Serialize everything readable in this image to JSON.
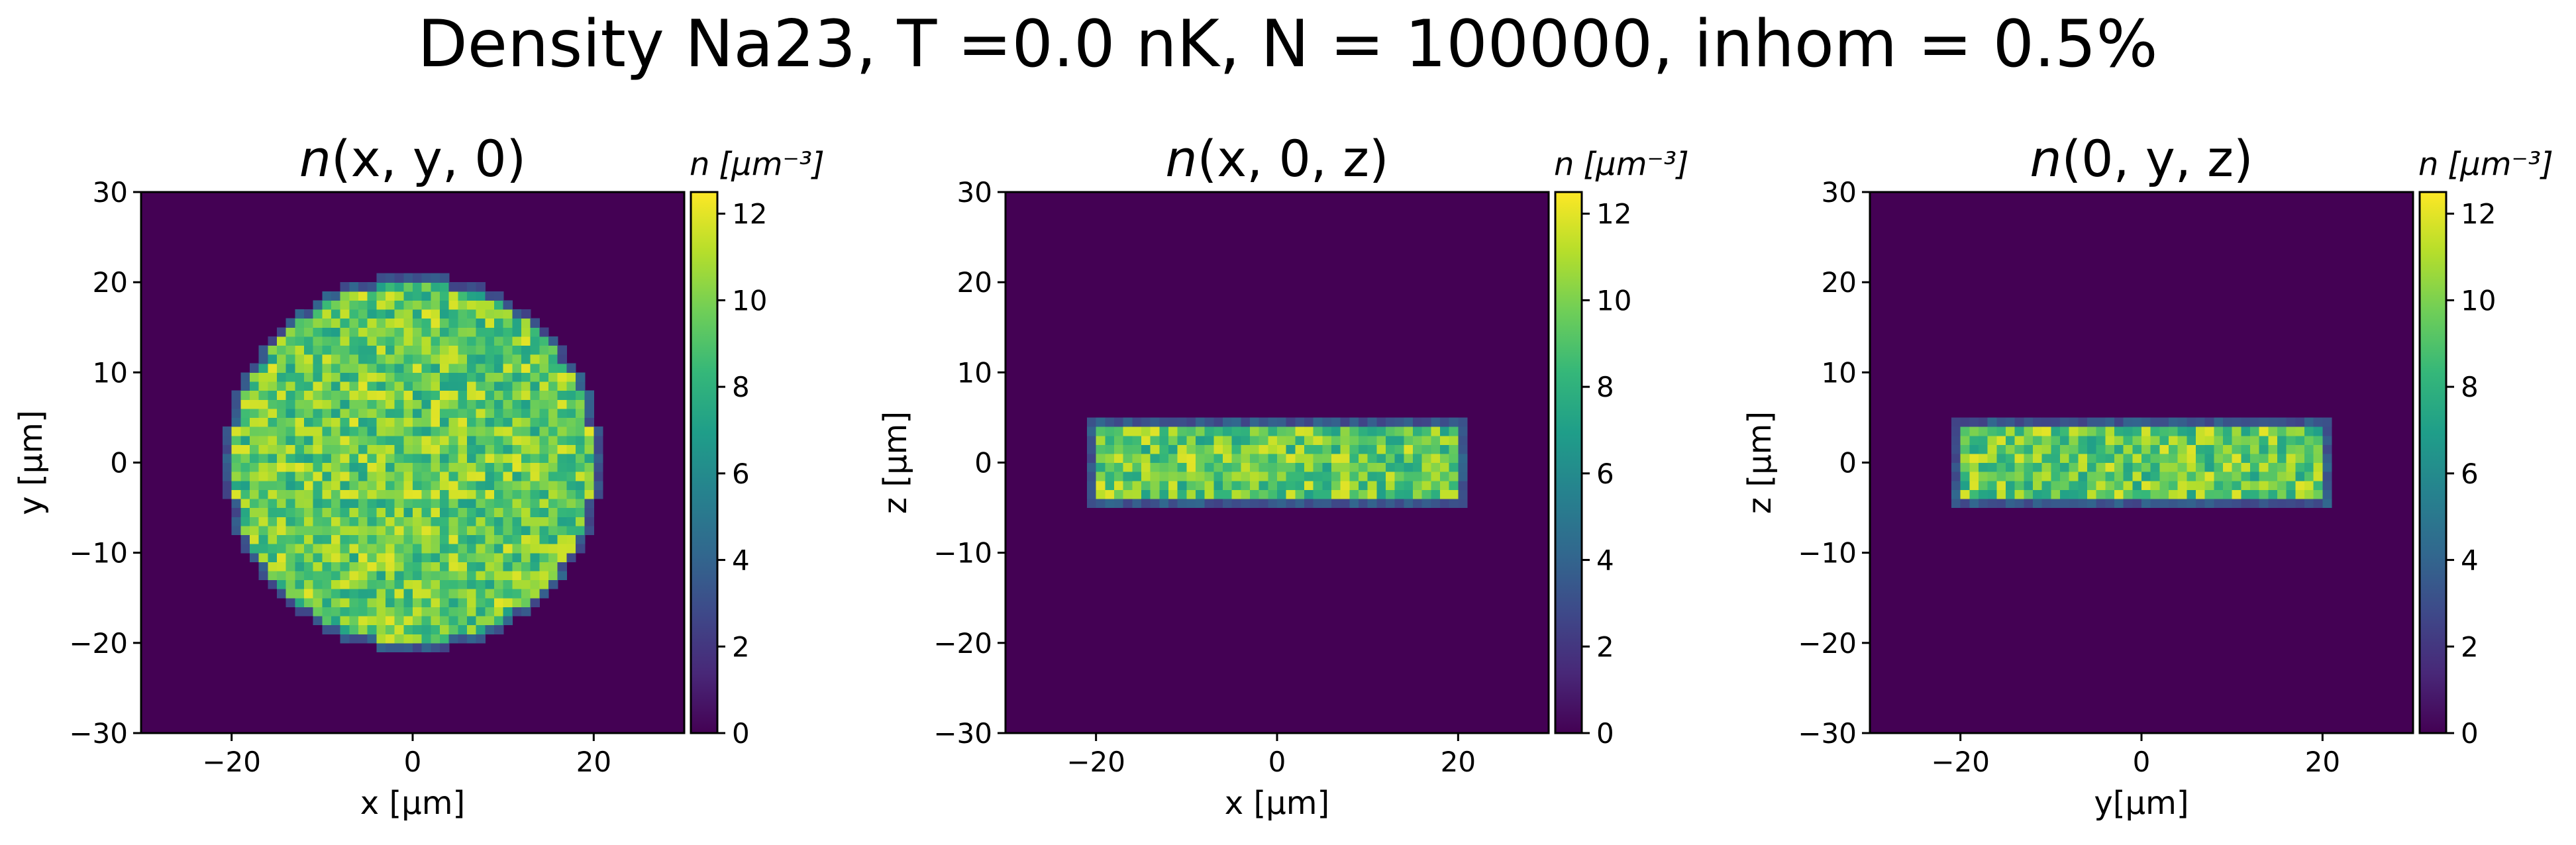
{
  "figure": {
    "title": "Density Na23, T =0.0 nK, N = 100000, inhom = 0.5%"
  },
  "colormap": {
    "name": "viridis",
    "stops": [
      "#440154",
      "#482878",
      "#3e4989",
      "#31688e",
      "#26828e",
      "#1f9e89",
      "#35b779",
      "#6ece58",
      "#b5de2b",
      "#fde725"
    ]
  },
  "chart_data": [
    {
      "type": "heatmap",
      "title_var": "n",
      "title_args": "(x, y, 0)",
      "xlabel": "x [µm]",
      "ylabel": "y [µm]",
      "xlim": [
        -30,
        30
      ],
      "ylim": [
        -30,
        30
      ],
      "xticks": [
        -20,
        0,
        20
      ],
      "yticks": [
        -30,
        -20,
        -10,
        0,
        10,
        20,
        30
      ],
      "xtick_labels": [
        "−20",
        "0",
        "20"
      ],
      "ytick_labels": [
        "−30",
        "−20",
        "−10",
        "0",
        "10",
        "20",
        "30"
      ],
      "colorbar": {
        "label_var": "n",
        "label_unit": "[µm⁻³]",
        "range": [
          0,
          12.5
        ],
        "ticks": [
          0,
          2,
          4,
          6,
          8,
          10,
          12
        ],
        "tick_labels": [
          "0",
          "2",
          "4",
          "6",
          "8",
          "10",
          "12"
        ]
      },
      "cloud": {
        "shape": "disk",
        "center": [
          0,
          0
        ],
        "radius": 20,
        "mean_density": 9.5,
        "noise": 2.5
      },
      "grid_step": 1
    },
    {
      "type": "heatmap",
      "title_var": "n",
      "title_args": "(x, 0, z)",
      "xlabel": "x [µm]",
      "ylabel": "z [µm]",
      "xlim": [
        -30,
        30
      ],
      "ylim": [
        -30,
        30
      ],
      "xticks": [
        -20,
        0,
        20
      ],
      "yticks": [
        -30,
        -20,
        -10,
        0,
        10,
        20,
        30
      ],
      "xtick_labels": [
        "−20",
        "0",
        "20"
      ],
      "ytick_labels": [
        "−30",
        "−20",
        "−10",
        "0",
        "10",
        "20",
        "30"
      ],
      "colorbar": {
        "label_var": "n",
        "label_unit": "[µm⁻³]",
        "range": [
          0,
          12.5
        ],
        "ticks": [
          0,
          2,
          4,
          6,
          8,
          10,
          12
        ],
        "tick_labels": [
          "0",
          "2",
          "4",
          "6",
          "8",
          "10",
          "12"
        ]
      },
      "cloud": {
        "shape": "rect",
        "x_range": [
          -20,
          20
        ],
        "y_range": [
          -4,
          4
        ],
        "mean_density": 9.5,
        "noise": 2.5
      },
      "grid_step": 1
    },
    {
      "type": "heatmap",
      "title_var": "n",
      "title_args": "(0, y, z)",
      "xlabel": "y[µm]",
      "ylabel": "z [µm]",
      "xlim": [
        -30,
        30
      ],
      "ylim": [
        -30,
        30
      ],
      "xticks": [
        -20,
        0,
        20
      ],
      "yticks": [
        -30,
        -20,
        -10,
        0,
        10,
        20,
        30
      ],
      "xtick_labels": [
        "−20",
        "0",
        "20"
      ],
      "ytick_labels": [
        "−30",
        "−20",
        "−10",
        "0",
        "10",
        "20",
        "30"
      ],
      "colorbar": {
        "label_var": "n",
        "label_unit": "[µm⁻³]",
        "range": [
          0,
          12.5
        ],
        "ticks": [
          0,
          2,
          4,
          6,
          8,
          10,
          12
        ],
        "tick_labels": [
          "0",
          "2",
          "4",
          "6",
          "8",
          "10",
          "12"
        ]
      },
      "cloud": {
        "shape": "rect",
        "x_range": [
          -20,
          20
        ],
        "y_range": [
          -4,
          4
        ],
        "mean_density": 9.5,
        "noise": 2.5
      },
      "grid_step": 1
    }
  ]
}
